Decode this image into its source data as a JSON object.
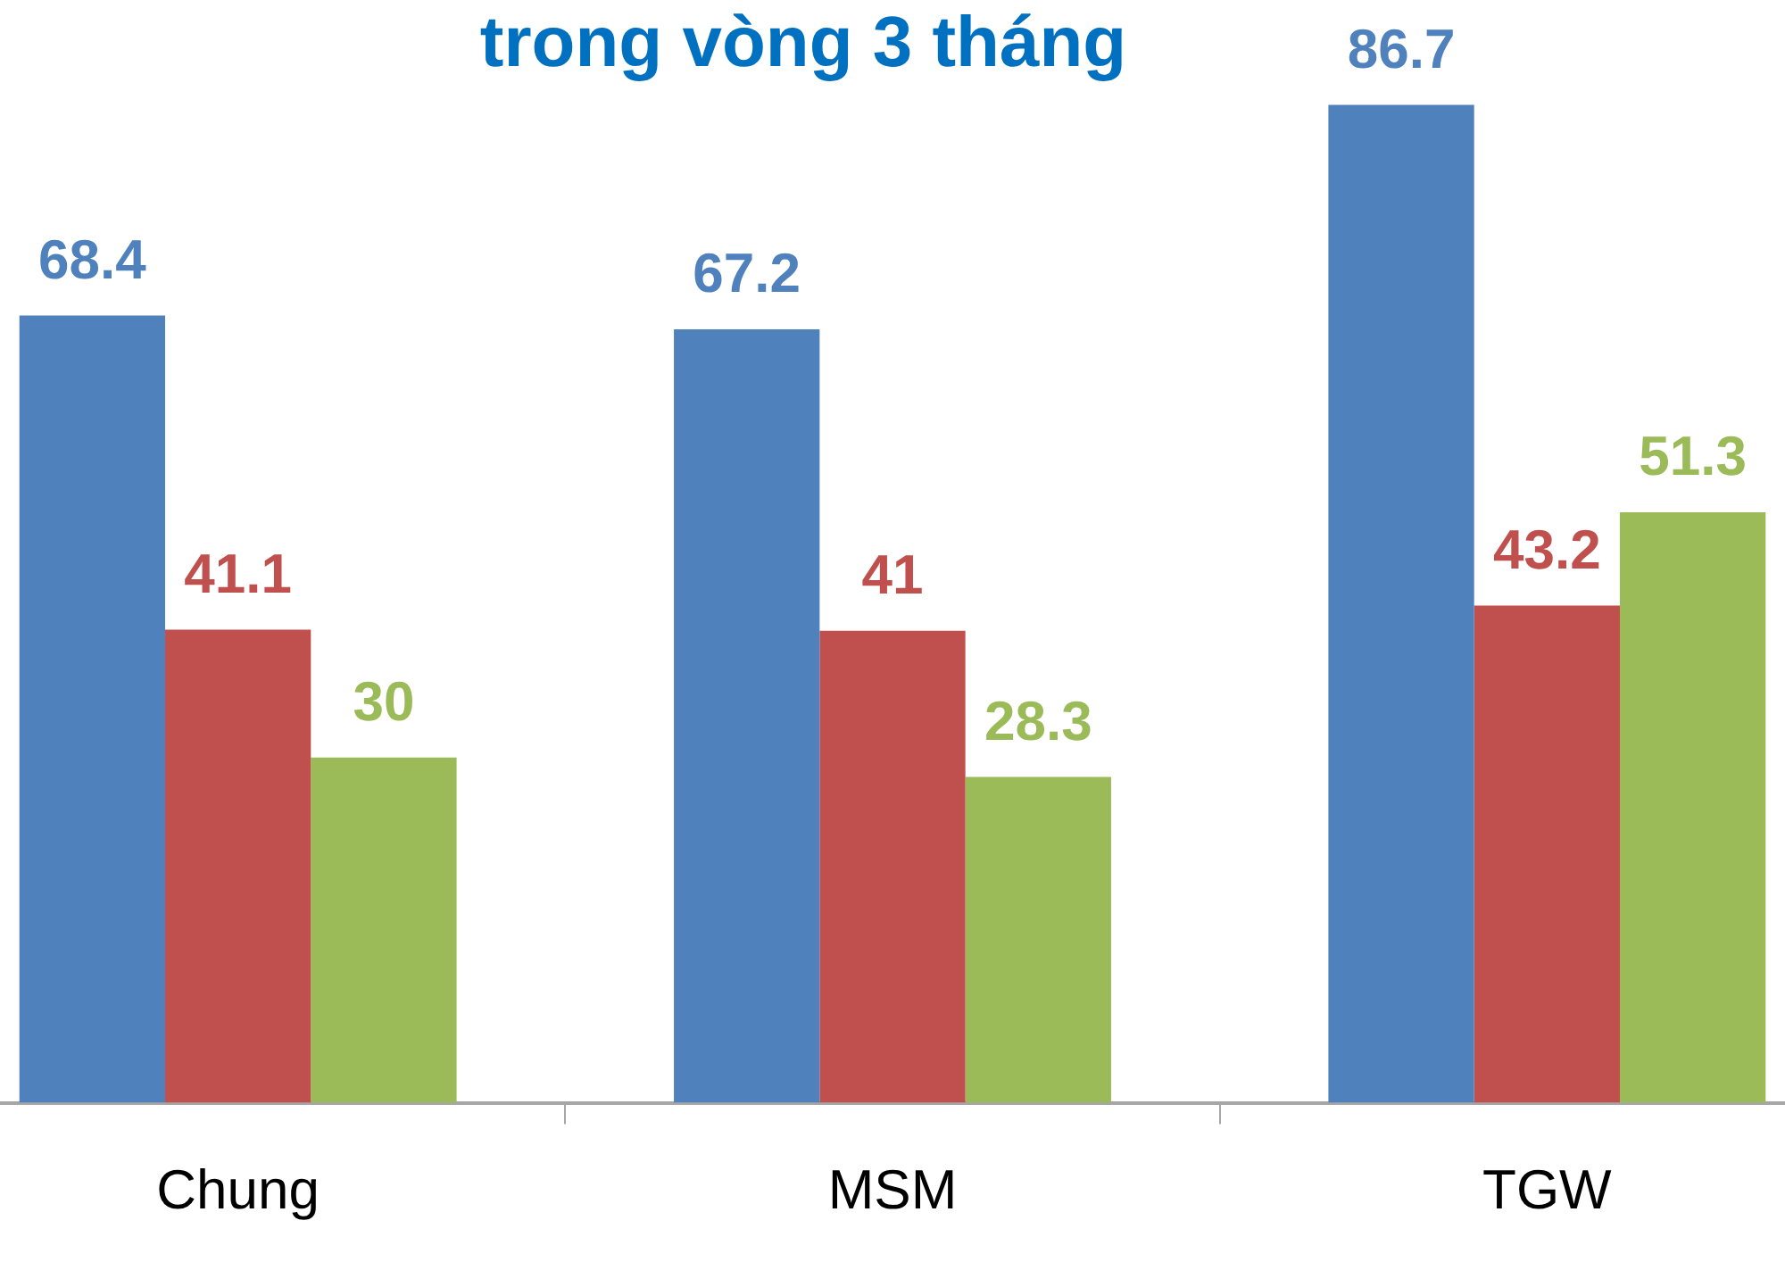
{
  "chart_data": {
    "type": "bar",
    "title": "trong vòng 3 tháng",
    "categories": [
      "Chung",
      "MSM",
      "TGW"
    ],
    "series": [
      {
        "color": "#4f81bd",
        "values": [
          68.4,
          67.2,
          86.7
        ]
      },
      {
        "color": "#c0504d",
        "values": [
          41.1,
          41,
          43.2
        ]
      },
      {
        "color": "#9bbb59",
        "values": [
          30,
          28.3,
          51.3
        ]
      }
    ],
    "data_labels": true,
    "grid": false,
    "legend": false
  }
}
